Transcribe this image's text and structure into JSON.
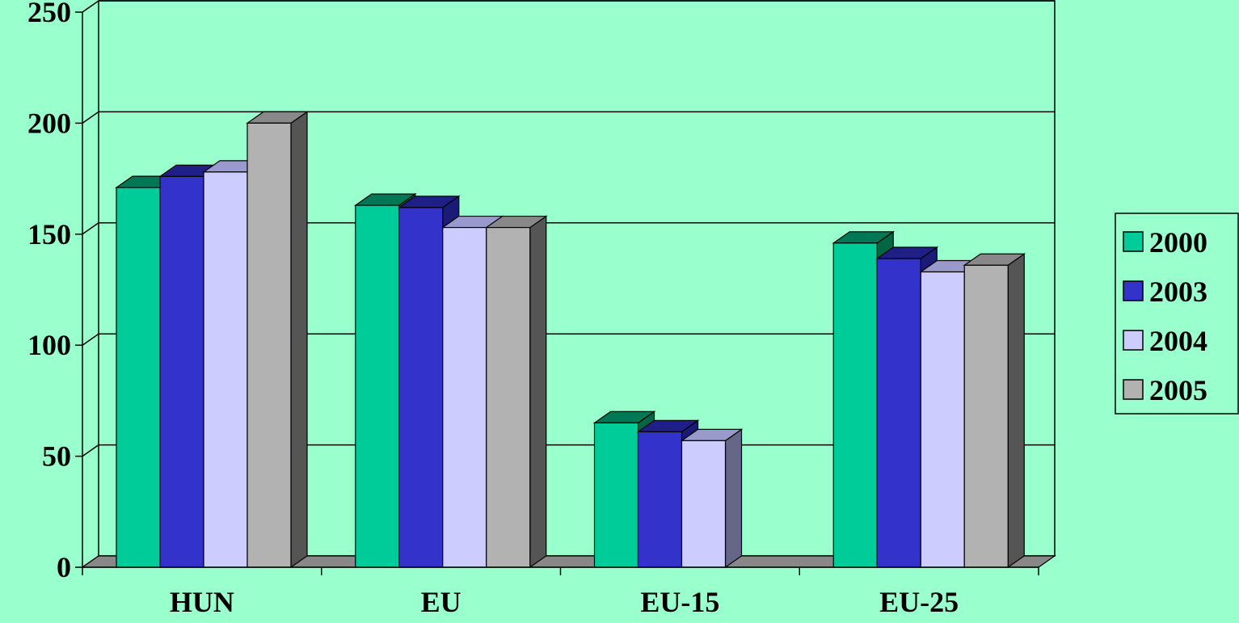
{
  "chart_data": {
    "type": "bar",
    "title": "",
    "xlabel": "",
    "ylabel": "",
    "categories": [
      "HUN",
      "EU",
      "EU-15",
      "EU-25"
    ],
    "series": [
      {
        "name": "2000",
        "values": [
          171,
          163,
          65,
          146
        ],
        "color": "#00cc99",
        "top": "#007755",
        "side": "#006644"
      },
      {
        "name": "2003",
        "values": [
          176,
          162,
          61,
          139
        ],
        "color": "#3333cc",
        "top": "#1f1f88",
        "side": "#1a1a77"
      },
      {
        "name": "2004",
        "values": [
          178,
          153,
          57,
          133
        ],
        "color": "#ccccff",
        "top": "#9999cc",
        "side": "#666688"
      },
      {
        "name": "2005",
        "values": [
          200,
          153,
          null,
          136
        ],
        "color": "#b2b2b2",
        "top": "#888888",
        "side": "#555555"
      }
    ],
    "ylim": [
      0,
      250
    ],
    "yticks": [
      0,
      50,
      100,
      150,
      200,
      250
    ],
    "grid": true,
    "legend": "right",
    "background": "#99ffcc"
  }
}
